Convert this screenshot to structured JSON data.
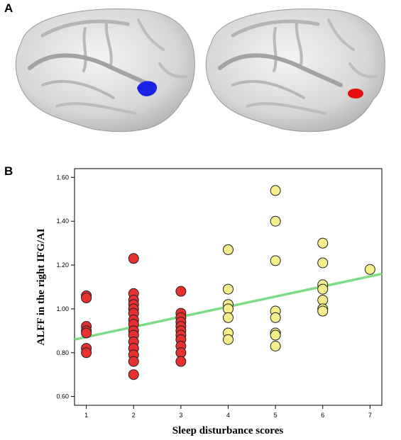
{
  "panels": {
    "a_label": "A",
    "b_label": "B"
  },
  "brains": [
    {
      "name": "left-brain",
      "marker_color": "#1a22e6"
    },
    {
      "name": "right-brain",
      "marker_color": "#e60f0f"
    }
  ],
  "chart_data": {
    "type": "scatter",
    "xlabel": "Sleep disturbance scores",
    "ylabel": "ALFF in the right IFG/AI",
    "xlim": [
      0.75,
      7.25
    ],
    "ylim": [
      0.56,
      1.64
    ],
    "x_ticks": [
      1,
      2,
      3,
      4,
      5,
      6,
      7
    ],
    "x_tick_labels": [
      "1",
      "2",
      "3",
      "4",
      "5",
      "6",
      "7"
    ],
    "y_ticks": [
      0.6,
      0.8,
      1.0,
      1.2,
      1.4,
      1.6
    ],
    "y_tick_labels": [
      "0.60",
      "0.80",
      "1.00",
      "1.20",
      "1.40",
      "1.60"
    ],
    "grid": false,
    "series": [
      {
        "color": "#e83030",
        "points": [
          [
            1,
            1.06
          ],
          [
            1,
            1.05
          ],
          [
            1,
            0.92
          ],
          [
            1,
            0.9
          ],
          [
            1,
            0.89
          ],
          [
            1,
            0.82
          ],
          [
            1,
            0.8
          ],
          [
            2,
            1.23
          ],
          [
            2,
            1.07
          ],
          [
            2,
            1.04
          ],
          [
            2,
            1.02
          ],
          [
            2,
            1.0
          ],
          [
            2,
            0.98
          ],
          [
            2,
            0.95
          ],
          [
            2,
            0.93
          ],
          [
            2,
            0.9
          ],
          [
            2,
            0.88
          ],
          [
            2,
            0.85
          ],
          [
            2,
            0.82
          ],
          [
            2,
            0.79
          ],
          [
            2,
            0.76
          ],
          [
            2,
            0.7
          ],
          [
            3,
            1.08
          ],
          [
            3,
            0.98
          ],
          [
            3,
            0.96
          ],
          [
            3,
            0.94
          ],
          [
            3,
            0.92
          ],
          [
            3,
            0.9
          ],
          [
            3,
            0.88
          ],
          [
            3,
            0.86
          ],
          [
            3,
            0.83
          ],
          [
            3,
            0.8
          ],
          [
            3,
            0.76
          ]
        ]
      },
      {
        "color": "#f5ee8a",
        "points": [
          [
            4,
            1.27
          ],
          [
            4,
            1.09
          ],
          [
            4,
            1.02
          ],
          [
            4,
            1.0
          ],
          [
            4,
            0.96
          ],
          [
            4,
            0.89
          ],
          [
            4,
            0.86
          ],
          [
            5,
            1.54
          ],
          [
            5,
            1.4
          ],
          [
            5,
            1.22
          ],
          [
            5,
            0.99
          ],
          [
            5,
            0.96
          ],
          [
            5,
            0.89
          ],
          [
            5,
            0.88
          ],
          [
            5,
            0.83
          ],
          [
            6,
            1.3
          ],
          [
            6,
            1.21
          ],
          [
            6,
            1.11
          ],
          [
            6,
            1.09
          ],
          [
            6,
            1.04
          ],
          [
            6,
            1.0
          ],
          [
            6,
            0.99
          ],
          [
            7,
            1.18
          ]
        ]
      }
    ],
    "fit_line": {
      "color": "#7fdc86",
      "x": [
        0.75,
        7.25
      ],
      "y": [
        0.86,
        1.16
      ]
    }
  }
}
